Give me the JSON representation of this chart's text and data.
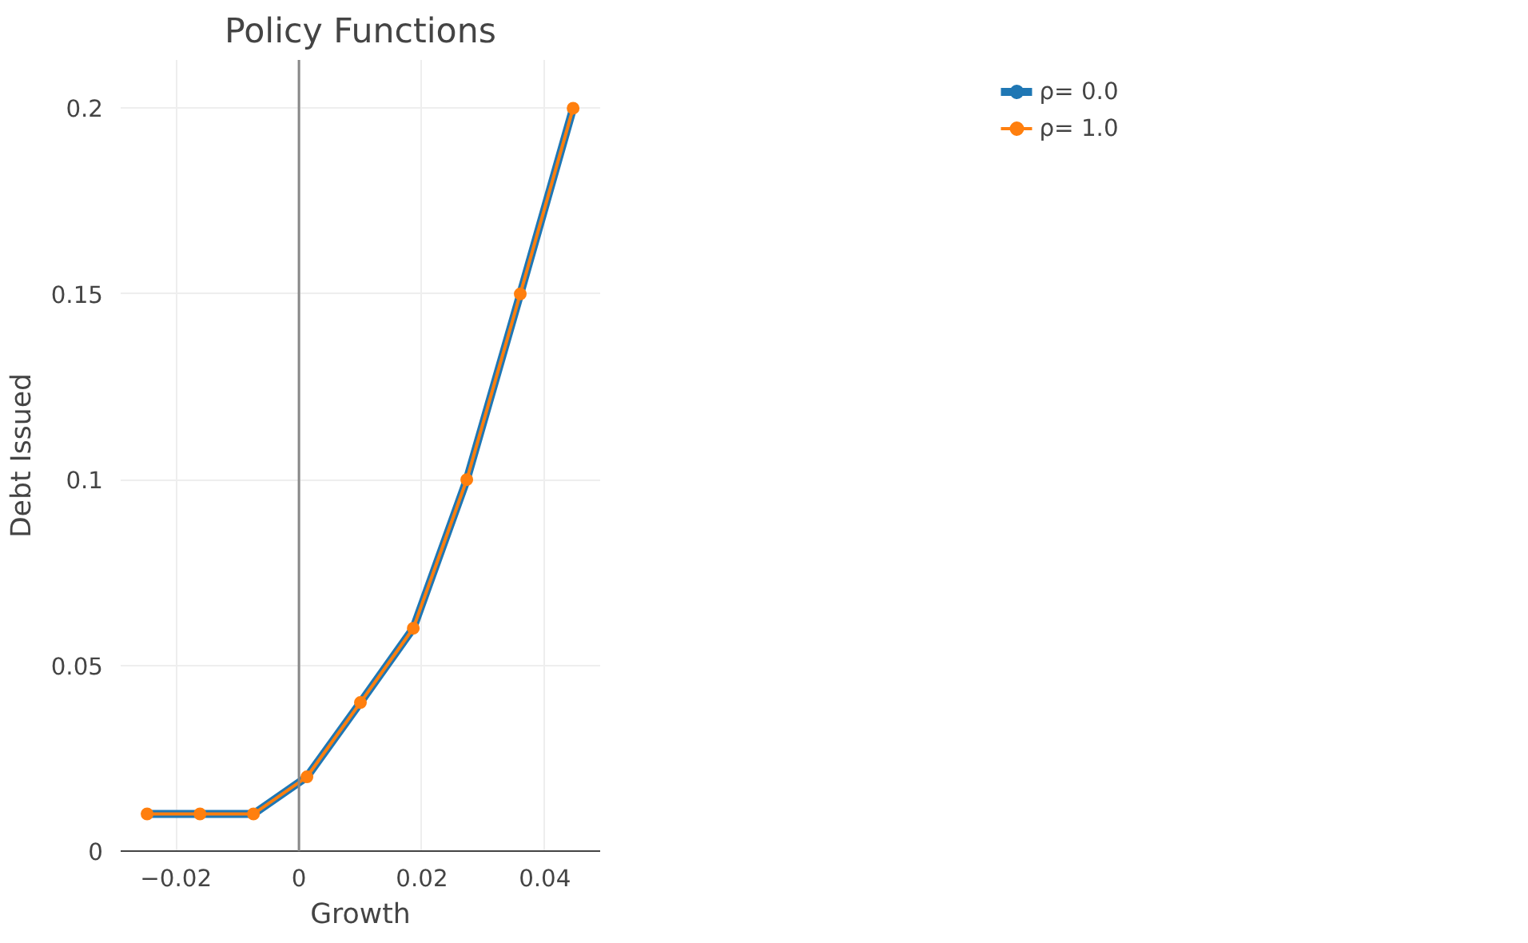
{
  "chart_data": {
    "type": "line",
    "title": "Policy Functions",
    "xlabel": "Growth",
    "ylabel": "Debt Issued",
    "x": [
      -0.0247,
      -0.0161,
      -0.0074,
      0.0013,
      0.01,
      0.0186,
      0.0273,
      0.036,
      0.0446
    ],
    "series": [
      {
        "name": "ρ= 0.0",
        "color": "#1f77b4",
        "values": [
          0.01,
          0.01,
          0.01,
          0.02,
          0.04,
          0.06,
          0.1,
          0.15,
          0.2
        ]
      },
      {
        "name": "ρ= 1.0",
        "color": "#ff7f0e",
        "values": [
          0.01,
          0.01,
          0.01,
          0.02,
          0.04,
          0.06,
          0.1,
          0.15,
          0.2
        ]
      }
    ],
    "xlim": [
      -0.029,
      0.049
    ],
    "ylim": [
      0,
      0.213
    ],
    "xticks": [
      {
        "value": -0.02,
        "label": "−0.02"
      },
      0,
      0.02,
      0.04
    ],
    "yticks": [
      0,
      0.05,
      0.1,
      0.15,
      0.2
    ],
    "ref_lines": [
      {
        "axis": "x",
        "value": 0,
        "label": null,
        "color": "#888888"
      }
    ],
    "grid": true,
    "legend": "top right",
    "marker": "circle",
    "line_style": "solid"
  }
}
